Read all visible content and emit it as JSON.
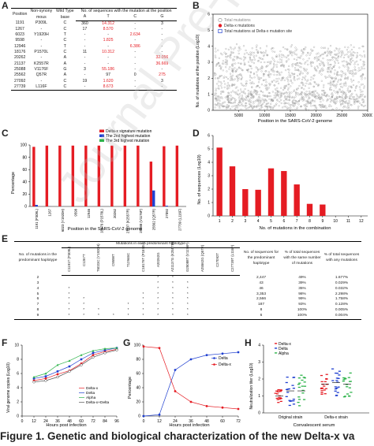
{
  "panels": {
    "a": "A",
    "b": "B",
    "c": "C",
    "d": "D",
    "e": "E",
    "f": "F",
    "g": "G",
    "h": "H"
  },
  "table_a": {
    "headers": {
      "position": "Position",
      "nonsyn": "Non-synony mous",
      "wild": "Wild Type base",
      "group": "No. of sequences with the mutation at the position",
      "a": "A",
      "t": "T",
      "c": "C",
      "g": "G"
    },
    "rows": [
      {
        "pos": "1191",
        "ns": "P309L",
        "wt": "C",
        "A": "360",
        "T": "14.312",
        "C": "-",
        "G": "3",
        "red": "T"
      },
      {
        "pos": "1267",
        "ns": "-",
        "wt": "C",
        "A": "17",
        "T": "8.570",
        "C": "-",
        "G": "-",
        "red": "T"
      },
      {
        "pos": "6023",
        "ns": "Y1920H",
        "wt": "T",
        "A": "-",
        "T": "-",
        "C": "2.634",
        "G": "-",
        "red": "C"
      },
      {
        "pos": "9598",
        "ns": "-",
        "wt": "C",
        "A": "-",
        "T": "1.825",
        "C": "-",
        "G": "-",
        "red": "T"
      },
      {
        "pos": "12946",
        "ns": "-",
        "wt": "T",
        "A": "-",
        "T": "-",
        "C": "6.386",
        "G": "-",
        "red": "C"
      },
      {
        "pos": "18176",
        "ns": "P1570L",
        "wt": "C",
        "A": "11",
        "T": "10.312",
        "C": "-",
        "G": "-",
        "red": "T"
      },
      {
        "pos": "20262",
        "ns": "-",
        "wt": "A",
        "A": "-",
        "T": "-",
        "C": "-",
        "G": "32.056",
        "red": "G"
      },
      {
        "pos": "21137",
        "ns": "K2557R",
        "wt": "A",
        "A": "-",
        "T": "-",
        "C": "-",
        "G": "36.669",
        "red": "G"
      },
      {
        "pos": "25088",
        "ns": "V1176F",
        "wt": "G",
        "A": "3",
        "T": "55.186",
        "C": "-",
        "G": "-",
        "red": "T"
      },
      {
        "pos": "25562",
        "ns": "Q57R",
        "wt": "A",
        "A": "-",
        "T": "97",
        "C": "0",
        "G": "275",
        "red": "G"
      },
      {
        "pos": "27092",
        "ns": "-",
        "wt": "C",
        "A": "19",
        "T": "1.620",
        "C": "-",
        "G": "3",
        "red": "T"
      },
      {
        "pos": "27739",
        "ns": "L116F",
        "wt": "C",
        "A": "-",
        "T": "8.673",
        "C": "-",
        "G": "-",
        "red": "T"
      }
    ]
  },
  "chart_b": {
    "type": "scatter",
    "legend": [
      "Total mutations",
      "Delta-x mutations",
      "Total mutations at Delta-x mutation site"
    ],
    "ylabel": "No. of mutations at the position (Log10)",
    "xlabel": "Position in the SARS-CoV-2 genome",
    "x_ticks": [
      "5000",
      "10000",
      "15000",
      "20000",
      "25000",
      "30000"
    ],
    "y_ticks": [
      "0",
      "1",
      "2",
      "3",
      "4",
      "5",
      "6"
    ],
    "xlim": [
      0,
      30000
    ],
    "ylim": [
      0,
      6
    ]
  },
  "chart_c": {
    "type": "bar",
    "legend": [
      "Delta-x signature mutation",
      "The 2nd highest mutation",
      "The 3rd highest mutation"
    ],
    "ylabel": "Percentage",
    "xlabel": "Position in the SARS-CoV-2 genome",
    "categories": [
      "1191 (P309L)",
      "1267",
      "6023 (Y1920H)",
      "9598",
      "12946",
      "18176 (P1570L)",
      "20262",
      "21137 (K2557R)",
      "25088 (V1176F)",
      "25562 (Q57R)",
      "27092",
      "27739 (L116F)"
    ],
    "y_ticks": [
      "0",
      "20",
      "40",
      "60",
      "80",
      "100"
    ],
    "ylim": [
      0,
      100
    ],
    "series": [
      {
        "name": "Delta-x signature mutation",
        "values": [
          97,
          99,
          99,
          99,
          99,
          99,
          99,
          99,
          99,
          73,
          98,
          99
        ]
      },
      {
        "name": "The 2nd highest mutation",
        "values": [
          2.5,
          0.2,
          0.1,
          0,
          0,
          0.1,
          0,
          0,
          0.1,
          26,
          1.2,
          0
        ]
      },
      {
        "name": "The 3rd highest mutation",
        "values": [
          0,
          0,
          0,
          0,
          0,
          0,
          0,
          0,
          0,
          0.5,
          0,
          0
        ]
      }
    ]
  },
  "chart_d": {
    "type": "bar",
    "ylabel": "No. of sequences (Log10)",
    "xlabel": "No. of mutations in the combination",
    "categories": [
      "1",
      "2",
      "3",
      "4",
      "5",
      "6",
      "7",
      "8",
      "9",
      "10",
      "11",
      "12"
    ],
    "values": [
      5.1,
      3.7,
      2.0,
      1.95,
      3.55,
      3.35,
      2.35,
      0.9,
      0.85,
      0,
      0,
      0
    ],
    "y_ticks": [
      "0",
      "1",
      "2",
      "3",
      "4",
      "5",
      "6"
    ],
    "ylim": [
      0,
      6
    ]
  },
  "table_e": {
    "group_header": "Mutations in each predominant haplotype",
    "col_first": "No. of mutations in the predominant haplotype",
    "col_nseq": "No. of sequences for the predominant haplotype",
    "col_pct_same": "% of total sequences with the same number of mutations",
    "col_pct_any": "% of total sequences with any mutations",
    "mut_cols": [
      "C1191T (P309L)",
      "C1267T",
      "T6023C (Y1920H)",
      "C9598T",
      "T12946C",
      "C18176T (P1570L)",
      "A20262G",
      "A21137G (K2557R)",
      "G25088T (V1176F)",
      "A25562G (Q57R)",
      "C27092T",
      "C27739T (L116F)"
    ],
    "rows": [
      {
        "n": "2",
        "marks": [
          0,
          0,
          0,
          0,
          0,
          0,
          1,
          1,
          0,
          0,
          0,
          0
        ],
        "nseq": "2,447",
        "same": "49%",
        "any": "1.677%"
      },
      {
        "n": "3",
        "marks": [
          0,
          0,
          0,
          0,
          0,
          0,
          1,
          1,
          1,
          0,
          0,
          0
        ],
        "nseq": "43",
        "same": "39%",
        "any": "0.029%"
      },
      {
        "n": "4",
        "marks": [
          1,
          0,
          0,
          0,
          0,
          0,
          1,
          1,
          1,
          0,
          0,
          0
        ],
        "nseq": "46",
        "same": "35%",
        "any": "0.032%"
      },
      {
        "n": "5",
        "marks": [
          1,
          0,
          0,
          0,
          0,
          1,
          1,
          1,
          1,
          0,
          0,
          0
        ],
        "nseq": "3,353",
        "same": "98%",
        "any": "2.298%"
      },
      {
        "n": "6",
        "marks": [
          1,
          1,
          0,
          0,
          0,
          1,
          1,
          1,
          1,
          0,
          0,
          0
        ],
        "nseq": "2,566",
        "same": "99%",
        "any": "1.758%"
      },
      {
        "n": "7",
        "marks": [
          1,
          1,
          0,
          0,
          1,
          1,
          1,
          1,
          1,
          0,
          0,
          0
        ],
        "nseq": "187",
        "same": "93%",
        "any": "0.128%"
      },
      {
        "n": "8",
        "marks": [
          1,
          1,
          1,
          0,
          1,
          1,
          1,
          1,
          1,
          0,
          0,
          0
        ],
        "nseq": "8",
        "same": "100%",
        "any": "0.005%"
      },
      {
        "n": "9",
        "marks": [
          1,
          1,
          1,
          1,
          1,
          1,
          1,
          1,
          1,
          0,
          0,
          0
        ],
        "nseq": "6",
        "same": "100%",
        "any": "0.004%"
      }
    ]
  },
  "chart_f": {
    "type": "line",
    "ylabel": "Viral genome copies (Log10)",
    "xlabel": "Hours post infection",
    "x": [
      12,
      24,
      36,
      48,
      60,
      72,
      84,
      96
    ],
    "x_ticks": [
      "0",
      "12",
      "24",
      "36",
      "48",
      "60",
      "72",
      "84",
      "96"
    ],
    "y_ticks": [
      "0",
      "2",
      "4",
      "6",
      "8",
      "10"
    ],
    "xlim": [
      0,
      96
    ],
    "ylim": [
      0,
      10
    ],
    "legend": [
      "Delta-x",
      "Delta",
      "Alpha",
      "Delta-x+Delta"
    ],
    "series": [
      {
        "name": "Delta-x",
        "values": [
          5.0,
          5.3,
          5.9,
          6.4,
          7.4,
          8.6,
          9.1,
          9.4
        ]
      },
      {
        "name": "Delta",
        "values": [
          5.3,
          5.6,
          6.3,
          7.0,
          8.0,
          8.9,
          9.3,
          9.6
        ]
      },
      {
        "name": "Alpha",
        "values": [
          5.5,
          6.0,
          7.2,
          7.8,
          8.6,
          9.2,
          9.5,
          9.6
        ]
      },
      {
        "name": "Delta-x+Delta",
        "values": [
          4.8,
          5.0,
          5.5,
          6.3,
          7.2,
          8.3,
          8.9,
          9.3
        ]
      }
    ]
  },
  "chart_g": {
    "type": "line",
    "ylabel": "Percentage",
    "xlabel": "Hours post infection",
    "x": [
      0,
      12,
      24,
      36,
      48,
      60,
      72
    ],
    "x_ticks": [
      "0",
      "12",
      "24",
      "36",
      "48",
      "60",
      "72"
    ],
    "y_ticks": [
      "0",
      "20",
      "40",
      "60",
      "80",
      "100"
    ],
    "xlim": [
      0,
      72
    ],
    "ylim": [
      0,
      100
    ],
    "legend": [
      "Delta",
      "Delta-x"
    ],
    "series": [
      {
        "name": "Delta",
        "values": [
          0,
          2,
          65,
          80,
          86,
          88,
          90
        ]
      },
      {
        "name": "Delta-x",
        "values": [
          98,
          96,
          35,
          20,
          14,
          12,
          10
        ]
      }
    ]
  },
  "chart_h": {
    "type": "scatter",
    "ylabel": "Neutralization titer (Log10)",
    "xlabel": "Convalescent serum",
    "categories": [
      "Original strain",
      "Delta-x strain"
    ],
    "y_ticks": [
      "0",
      "1",
      "2",
      "3",
      "4"
    ],
    "ylim": [
      0,
      4
    ],
    "legend": [
      "Delta-x",
      "Delta",
      "Alpha"
    ]
  },
  "caption": "Figure 1. Genetic and biological characterization of the new Delta-x va",
  "watermark": "Journal Pre-proof",
  "colors": {
    "red": "#e51c23",
    "blue": "#1f3fd0",
    "green": "#2db34a",
    "gray": "#888888"
  }
}
